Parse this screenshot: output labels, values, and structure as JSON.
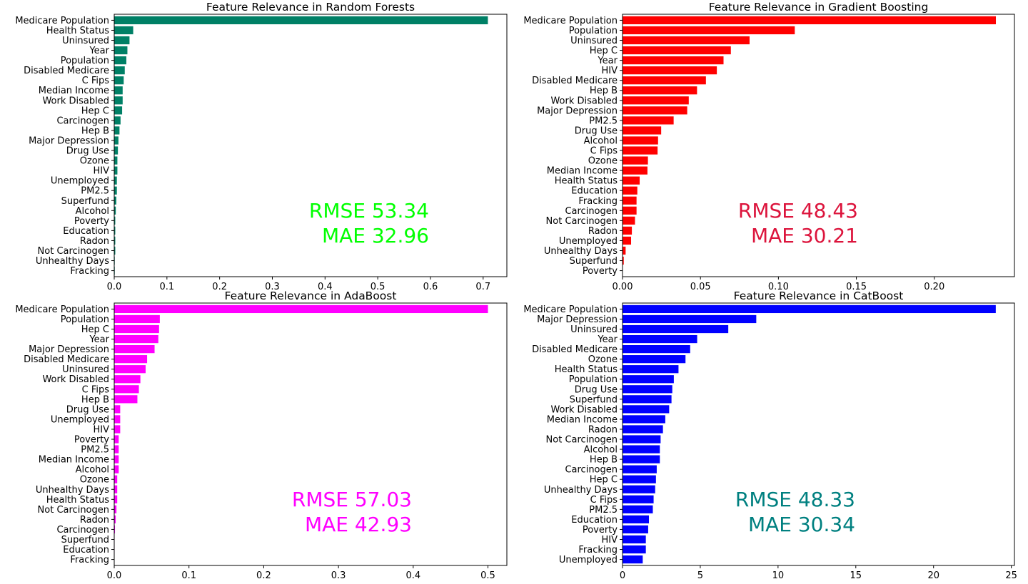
{
  "chart_data": [
    {
      "type": "bar",
      "orientation": "horizontal",
      "title": "Feature Relevance in Random Forests",
      "color": "#008066",
      "xlim": [
        0,
        0.745
      ],
      "xticks": [
        0.0,
        0.1,
        0.2,
        0.3,
        0.4,
        0.5,
        0.6,
        0.7
      ],
      "xtick_labels": [
        "0.0",
        "0.1",
        "0.2",
        "0.3",
        "0.4",
        "0.5",
        "0.6",
        "0.7"
      ],
      "categories": [
        "Medicare Population",
        "Health Status",
        "Uninsured",
        "Year",
        "Population",
        "Disabled Medicare",
        "C Fips",
        "Median Income",
        "Work Disabled",
        "Hep C",
        "Carcinogen",
        "Hep B",
        "Major Depression",
        "Drug Use",
        "Ozone",
        "HIV",
        "Unemployed",
        "PM2.5",
        "Superfund",
        "Alcohol",
        "Poverty",
        "Education",
        "Radon",
        "Not Carcinogen",
        "Unhealthy Days",
        "Fracking"
      ],
      "values": [
        0.709,
        0.036,
        0.029,
        0.025,
        0.023,
        0.02,
        0.018,
        0.016,
        0.016,
        0.015,
        0.012,
        0.01,
        0.008,
        0.007,
        0.006,
        0.006,
        0.005,
        0.005,
        0.004,
        0.003,
        0.002,
        0.002,
        0.002,
        0.002,
        0.001,
        0.001
      ],
      "annotations": [
        {
          "text": "RMSE 53.34",
          "color": "#00ff00"
        },
        {
          "text": "MAE 32.96",
          "color": "#00ff00"
        }
      ]
    },
    {
      "type": "bar",
      "orientation": "horizontal",
      "title": "Feature Relevance in Gradient Boosting",
      "color": "#ff0000",
      "xlim": [
        0,
        0.2514
      ],
      "xticks": [
        0.0,
        0.05,
        0.1,
        0.15,
        0.2
      ],
      "xtick_labels": [
        "0.00",
        "0.05",
        "0.10",
        "0.15",
        "0.20"
      ],
      "categories": [
        "Medicare Population",
        "Population",
        "Uninsured",
        "Hep C",
        "Year",
        "HIV",
        "Disabled Medicare",
        "Hep B",
        "Work Disabled",
        "Major Depression",
        "PM2.5",
        "Drug Use",
        "Alcohol",
        "C Fips",
        "Ozone",
        "Median Income",
        "Health Status",
        "Education",
        "Fracking",
        "Carcinogen",
        "Not Carcinogen",
        "Radon",
        "Unemployed",
        "Unhealthy Days",
        "Superfund",
        "Poverty"
      ],
      "values": [
        0.2395,
        0.1105,
        0.0815,
        0.0695,
        0.0648,
        0.0605,
        0.0535,
        0.0478,
        0.0425,
        0.0415,
        0.0328,
        0.0248,
        0.0228,
        0.0225,
        0.0163,
        0.016,
        0.011,
        0.0095,
        0.009,
        0.009,
        0.008,
        0.006,
        0.0055,
        0.002,
        0.0008,
        0.0002
      ],
      "annotations": [
        {
          "text": "RMSE 48.43",
          "color": "#dc143c"
        },
        {
          "text": "MAE 30.21",
          "color": "#dc143c"
        }
      ]
    },
    {
      "type": "bar",
      "orientation": "horizontal",
      "title": "Feature Relevance in AdaBoost",
      "color": "#ff00ff",
      "xlim": [
        0,
        0.5253
      ],
      "xticks": [
        0.0,
        0.1,
        0.2,
        0.3,
        0.4,
        0.5
      ],
      "xtick_labels": [
        "0.0",
        "0.1",
        "0.2",
        "0.3",
        "0.4",
        "0.5"
      ],
      "categories": [
        "Medicare Population",
        "Population",
        "Hep C",
        "Year",
        "Major Depression",
        "Disabled Medicare",
        "Uninsured",
        "Work Disabled",
        "C Fips",
        "Hep B",
        "Drug Use",
        "Unemployed",
        "HIV",
        "Poverty",
        "PM2.5",
        "Median Income",
        "Alcohol",
        "Ozone",
        "Unhealthy Days",
        "Health Status",
        "Not Carcinogen",
        "Radon",
        "Carcinogen",
        "Superfund",
        "Education",
        "Fracking"
      ],
      "values": [
        0.5,
        0.061,
        0.06,
        0.059,
        0.054,
        0.044,
        0.042,
        0.035,
        0.033,
        0.031,
        0.008,
        0.008,
        0.008,
        0.006,
        0.006,
        0.006,
        0.006,
        0.004,
        0.004,
        0.004,
        0.003,
        0.002,
        0.001,
        0.0005,
        0.0005,
        0.0003
      ],
      "annotations": [
        {
          "text": "RMSE 57.03",
          "color": "#ff00ff"
        },
        {
          "text": "MAE 42.93",
          "color": "#ff00ff"
        }
      ]
    },
    {
      "type": "bar",
      "orientation": "horizontal",
      "title": "Feature Relevance in CatBoost",
      "color": "#0000ff",
      "xlim": [
        0,
        25.2
      ],
      "xticks": [
        0,
        5,
        10,
        15,
        20,
        25
      ],
      "xtick_labels": [
        "0",
        "5",
        "10",
        "15",
        "20",
        "25"
      ],
      "categories": [
        "Medicare Population",
        "Major Depression",
        "Uninsured",
        "Year",
        "Disabled Medicare",
        "Ozone",
        "Health Status",
        "Population",
        "Drug Use",
        "Superfund",
        "Work Disabled",
        "Median Income",
        "Radon",
        "Not Carcinogen",
        "Alcohol",
        "Hep B",
        "Carcinogen",
        "Hep C",
        "Unhealthy Days",
        "C Fips",
        "PM2.5",
        "Education",
        "Poverty",
        "HIV",
        "Fracking",
        "Unemployed"
      ],
      "values": [
        24.0,
        8.6,
        6.8,
        4.8,
        4.35,
        4.05,
        3.6,
        3.3,
        3.2,
        3.15,
        3.0,
        2.75,
        2.6,
        2.45,
        2.4,
        2.4,
        2.2,
        2.15,
        2.1,
        2.0,
        1.95,
        1.7,
        1.65,
        1.5,
        1.5,
        1.3
      ],
      "annotations": [
        {
          "text": "RMSE 48.33",
          "color": "#008080"
        },
        {
          "text": "MAE 30.34",
          "color": "#008080"
        }
      ]
    }
  ]
}
